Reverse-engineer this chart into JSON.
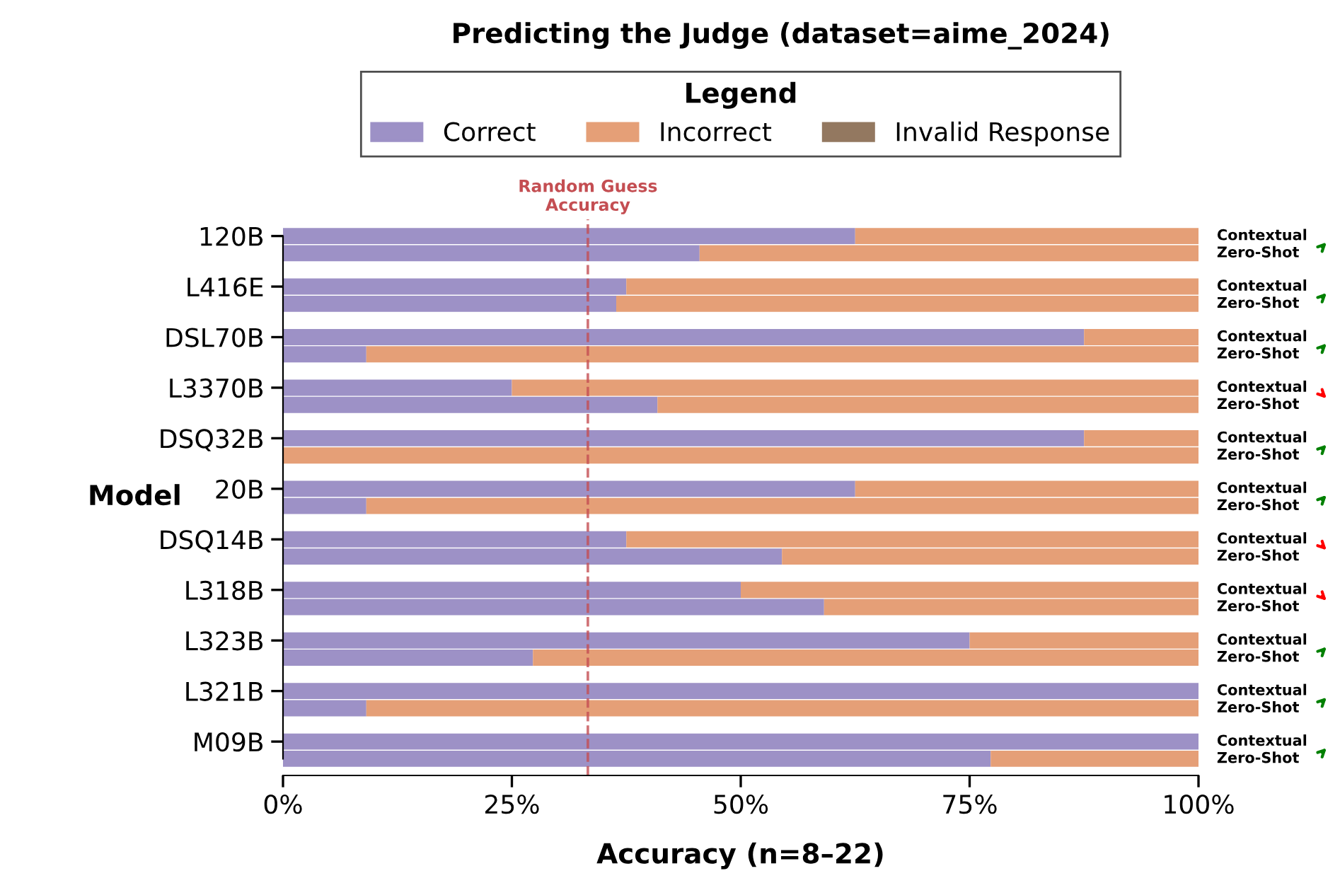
{
  "chart_data": {
    "type": "bar",
    "orientation": "horizontal",
    "stacked": true,
    "title": "Predicting the Judge (dataset=aime_2024)",
    "xlabel": "Accuracy (n=8–22)",
    "ylabel": "Model",
    "legend_title": "Legend",
    "legend": "top",
    "categories": [
      "120B",
      null,
      "L416E",
      null,
      "DSL70B",
      null,
      "L3370B",
      null,
      "DSQ32B",
      null,
      "20B",
      null,
      "DSQ14B",
      null,
      "L318B",
      null,
      "L323B",
      null,
      "L321B",
      null,
      "M09B",
      null
    ],
    "annotations": [
      "Contextual",
      "Zero-Shot",
      "Contextual",
      "Zero-Shot",
      "Contextual",
      "Zero-Shot",
      "Contextual",
      "Zero-Shot",
      "Contextual",
      "Zero-Shot",
      "Contextual",
      "Zero-Shot",
      "Contextual",
      "Zero-Shot",
      "Contextual",
      "Zero-Shot",
      "Contextual",
      "Zero-Shot",
      "Contextual",
      "Zero-Shot",
      "Contextual",
      "Zero-Shot"
    ],
    "series": [
      {
        "name": "Correct",
        "color": "#9d91c6",
        "values": [
          62.5,
          45.5,
          37.5,
          36.4,
          87.5,
          9.1,
          25,
          40.9,
          87.5,
          0,
          62.5,
          9.1,
          37.5,
          54.5,
          50,
          59.1,
          75,
          27.3,
          100,
          9.1,
          100,
          77.3
        ]
      },
      {
        "name": "Incorrect",
        "color": "#e59f77",
        "values": [
          37.5,
          54.5,
          62.5,
          63.6,
          12.5,
          90.9,
          75,
          59.1,
          12.5,
          100,
          37.5,
          90.9,
          62.5,
          45.5,
          50,
          40.9,
          25,
          72.7,
          0,
          90.9,
          0,
          22.7
        ]
      },
      {
        "name": "Invalid Response",
        "color": "#937860",
        "values": [
          0,
          0,
          0,
          0,
          0,
          0,
          0,
          0,
          0,
          0,
          0,
          0,
          0,
          0,
          0,
          0,
          0,
          0,
          0,
          0,
          0,
          0
        ]
      }
    ],
    "xlim": [
      0,
      100
    ],
    "xticks": [
      {
        "value": 0,
        "label": "0%"
      },
      {
        "value": 25,
        "label": "25%"
      },
      {
        "value": 50,
        "label": "50%"
      },
      {
        "value": 75,
        "label": "75%"
      },
      {
        "value": 100,
        "label": "100%"
      }
    ],
    "ref_lines": [
      {
        "axis": "x",
        "value": 33.3,
        "label": "Random Guess\nAccuracy",
        "color": "#c44e52",
        "line_style": "dashed"
      }
    ],
    "grid": false
  }
}
